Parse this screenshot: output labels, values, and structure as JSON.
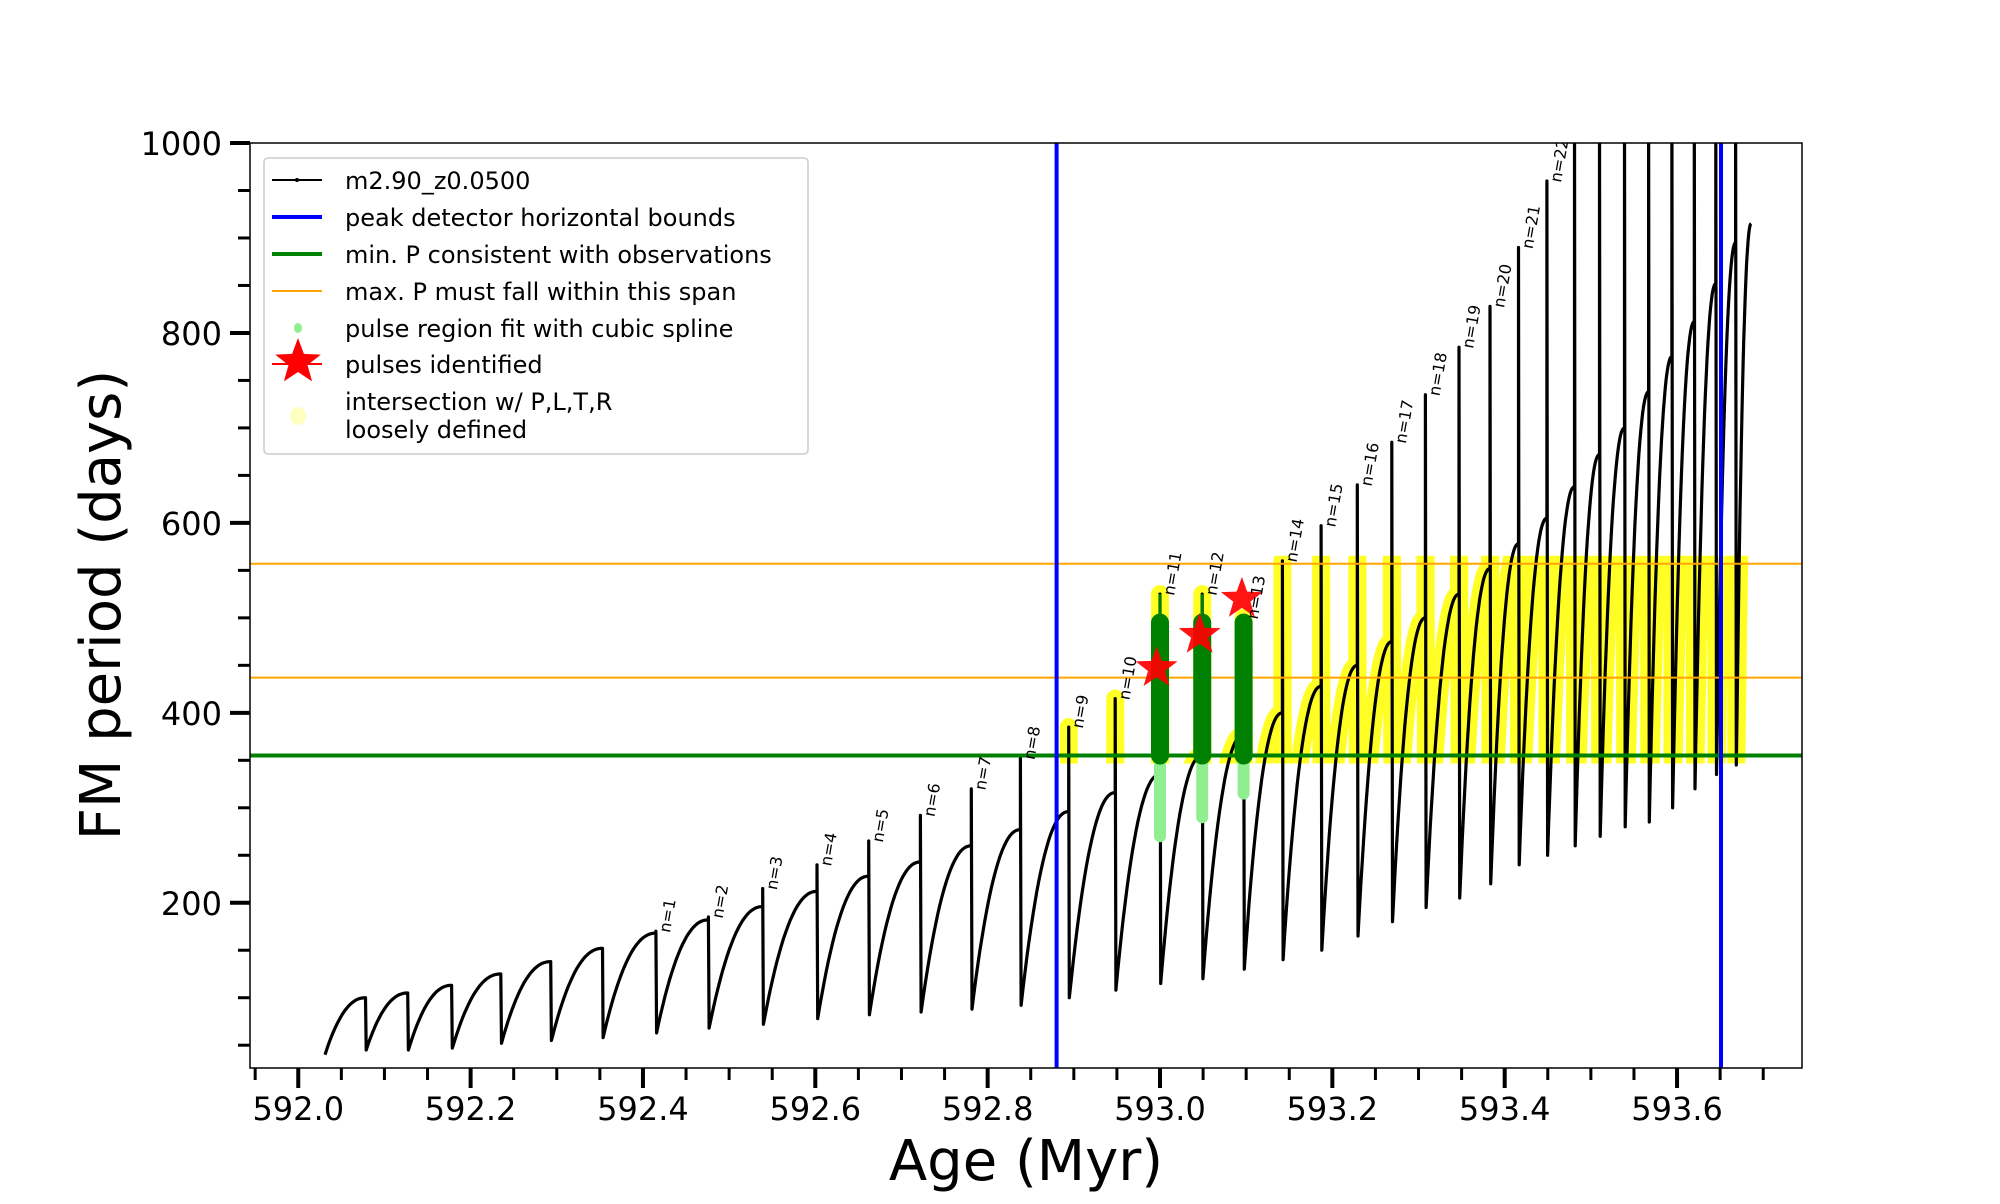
{
  "chart_data": {
    "type": "line",
    "title": "",
    "xlabel": "Age (Myr)",
    "ylabel": "FM period (days)",
    "xlim": [
      591.944,
      593.745
    ],
    "ylim": [
      26,
      1000
    ],
    "xticks": [
      "592.0",
      "592.2",
      "592.4",
      "592.6",
      "592.8",
      "593.0",
      "593.2",
      "593.4",
      "593.6"
    ],
    "xtick_values": [
      592.0,
      592.2,
      592.4,
      592.6,
      592.8,
      593.0,
      593.2,
      593.4,
      593.6
    ],
    "yticks": [
      "200",
      "400",
      "600",
      "800",
      "1000"
    ],
    "ytick_values": [
      200,
      400,
      600,
      800,
      1000
    ],
    "grid": false,
    "legend_position": "top-left",
    "legend": [
      {
        "label": "m2.90_z0.0500",
        "kind": "line-marker",
        "color": "#000000"
      },
      {
        "label": "peak detector horizontal bounds",
        "kind": "line",
        "color": "#0000ff"
      },
      {
        "label": "min. P consistent with observations",
        "kind": "line",
        "color": "#008000"
      },
      {
        "label": "max. P must fall within this span",
        "kind": "thin-line",
        "color": "#ffa500"
      },
      {
        "label": "pulse region fit with cubic spline",
        "kind": "dot",
        "color": "#90ee90"
      },
      {
        "label": "pulses identified",
        "kind": "star",
        "color": "#ff0000"
      },
      {
        "label": "intersection w/ P,L,T,R",
        "label2": "loosely defined",
        "kind": "dot",
        "color": "#ffffc0"
      }
    ],
    "series_track": {
      "name": "m2.90_z0.0500",
      "start": [
        592.031,
        40
      ],
      "pulse_ages": [
        592.078,
        592.127,
        592.178,
        592.235,
        592.293,
        592.353,
        592.415,
        592.476,
        592.539,
        592.602,
        592.662,
        592.722,
        592.781,
        592.838,
        592.894,
        592.948,
        593.0,
        593.049,
        593.097,
        593.142,
        593.187,
        593.229,
        593.269,
        593.308,
        593.347,
        593.383,
        593.416,
        593.449,
        593.481,
        593.51,
        593.539,
        593.567,
        593.594,
        593.62,
        593.645,
        593.668
      ],
      "peak_before_pulse": [
        100,
        105,
        113,
        125,
        138,
        152,
        168,
        182,
        196,
        212,
        228,
        243,
        260,
        277,
        296,
        316,
        335,
        355,
        377,
        400,
        428,
        450,
        475,
        500,
        525,
        552,
        578,
        605,
        638,
        672,
        700,
        738,
        775,
        812,
        852,
        895
      ],
      "spike_top": [
        100,
        105,
        113,
        125,
        138,
        152,
        170,
        185,
        215,
        240,
        265,
        292,
        320,
        352,
        385,
        415,
        525,
        525,
        500,
        560,
        597,
        640,
        685,
        735,
        785,
        828,
        890,
        960,
        1050,
        1050,
        1050,
        1050,
        1050,
        1050,
        1050,
        1050
      ],
      "min_after_pulse": [
        45,
        45,
        47,
        52,
        55,
        58,
        63,
        68,
        72,
        78,
        82,
        85,
        88,
        92,
        100,
        108,
        115,
        120,
        130,
        140,
        150,
        165,
        180,
        195,
        205,
        220,
        240,
        250,
        260,
        270,
        280,
        285,
        300,
        320,
        335,
        345
      ],
      "end": [
        593.686,
        915
      ],
      "pulse_labels": [
        "",
        "",
        "",
        "",
        "",
        "",
        "n=1",
        "n=2",
        "n=3",
        "n=4",
        "n=5",
        "n=6",
        "n=7",
        "n=8",
        "n=9",
        "n=10",
        "n=11",
        "n=12",
        "n=13",
        "n=14",
        "n=15",
        "n=16",
        "n=17",
        "n=18",
        "n=19",
        "n=20",
        "n=21",
        "n=22",
        "",
        "",
        "",
        "",
        "",
        "",
        "",
        ""
      ]
    },
    "peak_detector_bounds": [
      592.88,
      593.651
    ],
    "min_P_observed": 355,
    "max_P_span": [
      437,
      557
    ],
    "pulses_identified": [
      {
        "age": 592.996,
        "P": 447,
        "label": "n=11"
      },
      {
        "age": 593.046,
        "P": 482,
        "label": "n=12"
      },
      {
        "age": 593.095,
        "P": 520,
        "label": "n=13"
      }
    ],
    "spline_fit_regions": [
      {
        "age": 593.0,
        "dark": [
          355,
          495
        ],
        "light": [
          270,
          355
        ],
        "line_top": 525
      },
      {
        "age": 593.049,
        "dark": [
          355,
          495
        ],
        "light": [
          290,
          355
        ],
        "line_top": 525
      },
      {
        "age": 593.097,
        "dark": [
          355,
          495
        ],
        "light": [
          315,
          355
        ],
        "line_top": 495
      }
    ],
    "intersection_from_age": 592.875
  }
}
